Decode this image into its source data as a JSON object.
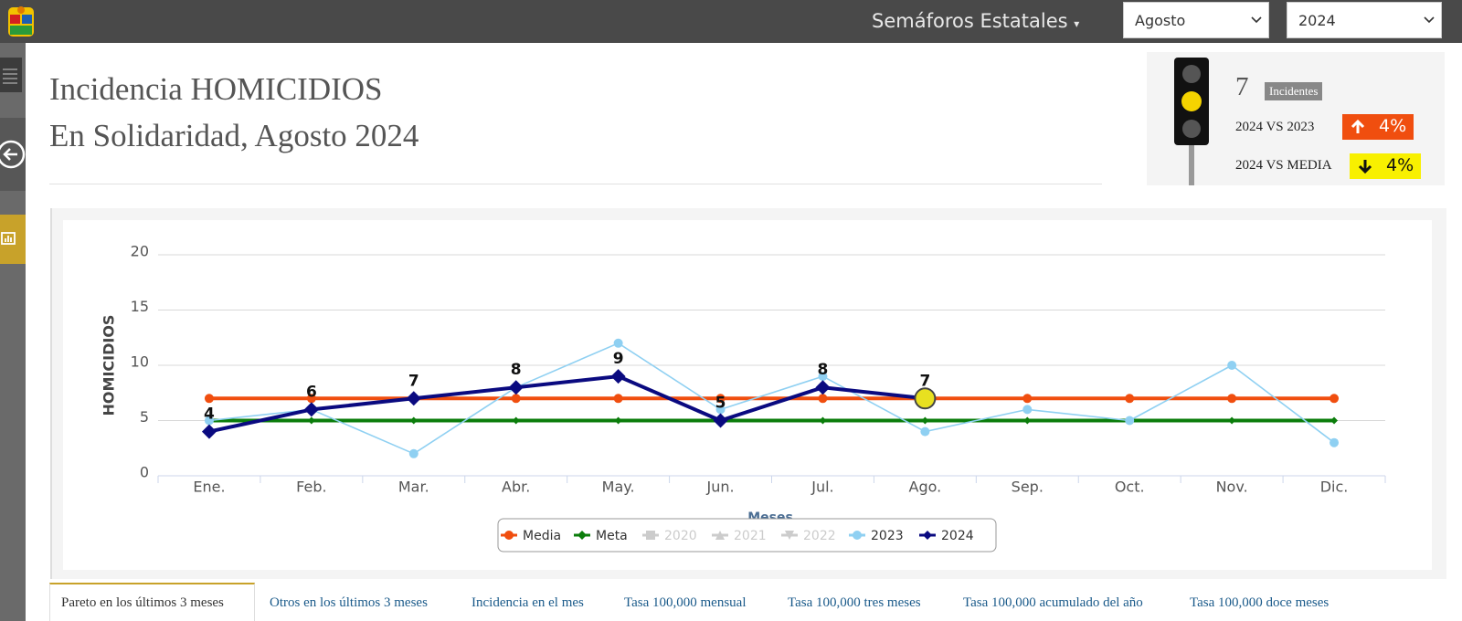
{
  "navbar": {
    "title": "Semáforos Estatales",
    "month": "Agosto",
    "year": "2024"
  },
  "header": {
    "line1": "Incidencia HOMICIDIOS",
    "line2": "En Solidaridad, Agosto 2024"
  },
  "summary": {
    "count": 7,
    "badge": "Incidentes",
    "compare_prev": {
      "label": "2024 VS 2023",
      "change": "4%",
      "direction": "up"
    },
    "compare_mean": {
      "label": "2024 VS MEDIA",
      "change": "4%",
      "direction": "down"
    }
  },
  "chart_data": {
    "type": "line",
    "y_label": "HOMICIDIOS",
    "x_label": "Meses",
    "categories": [
      "Ene.",
      "Feb.",
      "Mar.",
      "Abr.",
      "May.",
      "Jun.",
      "Jul.",
      "Ago.",
      "Sep.",
      "Oct.",
      "Nov.",
      "Dic."
    ],
    "ylim": [
      0,
      20
    ],
    "yticks": [
      0,
      5,
      10,
      15,
      20
    ],
    "grid": true,
    "series": [
      {
        "name": "Media",
        "color": "#f04e0f",
        "marker": "circle",
        "visible": true,
        "values": [
          7,
          7,
          7,
          7,
          7,
          7,
          7,
          7,
          7,
          7,
          7,
          7
        ]
      },
      {
        "name": "Meta",
        "color": "#0b7d0b",
        "marker": "diamond",
        "visible": true,
        "values": [
          5,
          5,
          5,
          5,
          5,
          5,
          5,
          5,
          5,
          5,
          5,
          5
        ]
      },
      {
        "name": "2020",
        "color": "#cccccc",
        "marker": "square",
        "visible": false,
        "values": [
          null,
          null,
          null,
          null,
          null,
          null,
          null,
          null,
          null,
          null,
          null,
          null
        ]
      },
      {
        "name": "2021",
        "color": "#cccccc",
        "marker": "triangle",
        "visible": false,
        "values": [
          null,
          null,
          null,
          null,
          null,
          null,
          null,
          null,
          null,
          null,
          null,
          null
        ]
      },
      {
        "name": "2022",
        "color": "#cccccc",
        "marker": "triangle-down",
        "visible": false,
        "values": [
          null,
          null,
          null,
          null,
          null,
          null,
          null,
          null,
          null,
          null,
          null,
          null
        ]
      },
      {
        "name": "2023",
        "color": "#8fd0f2",
        "marker": "circle",
        "visible": true,
        "values": [
          5,
          6,
          2,
          8,
          12,
          6,
          9,
          4,
          6,
          5,
          10,
          3
        ]
      },
      {
        "name": "2024",
        "color": "#0a0a80",
        "marker": "diamond",
        "visible": true,
        "data_labels": true,
        "values": [
          4,
          6,
          7,
          8,
          9,
          5,
          8,
          7,
          null,
          null,
          null,
          null
        ]
      }
    ]
  },
  "tabs": [
    "Pareto en los últimos 3 meses",
    "Otros en los últimos 3 meses",
    "Incidencia en el mes",
    "Tasa 100,000 mensual",
    "Tasa 100,000 tres meses",
    "Tasa 100,000 acumulado del año",
    "Tasa 100,000 doce meses"
  ]
}
